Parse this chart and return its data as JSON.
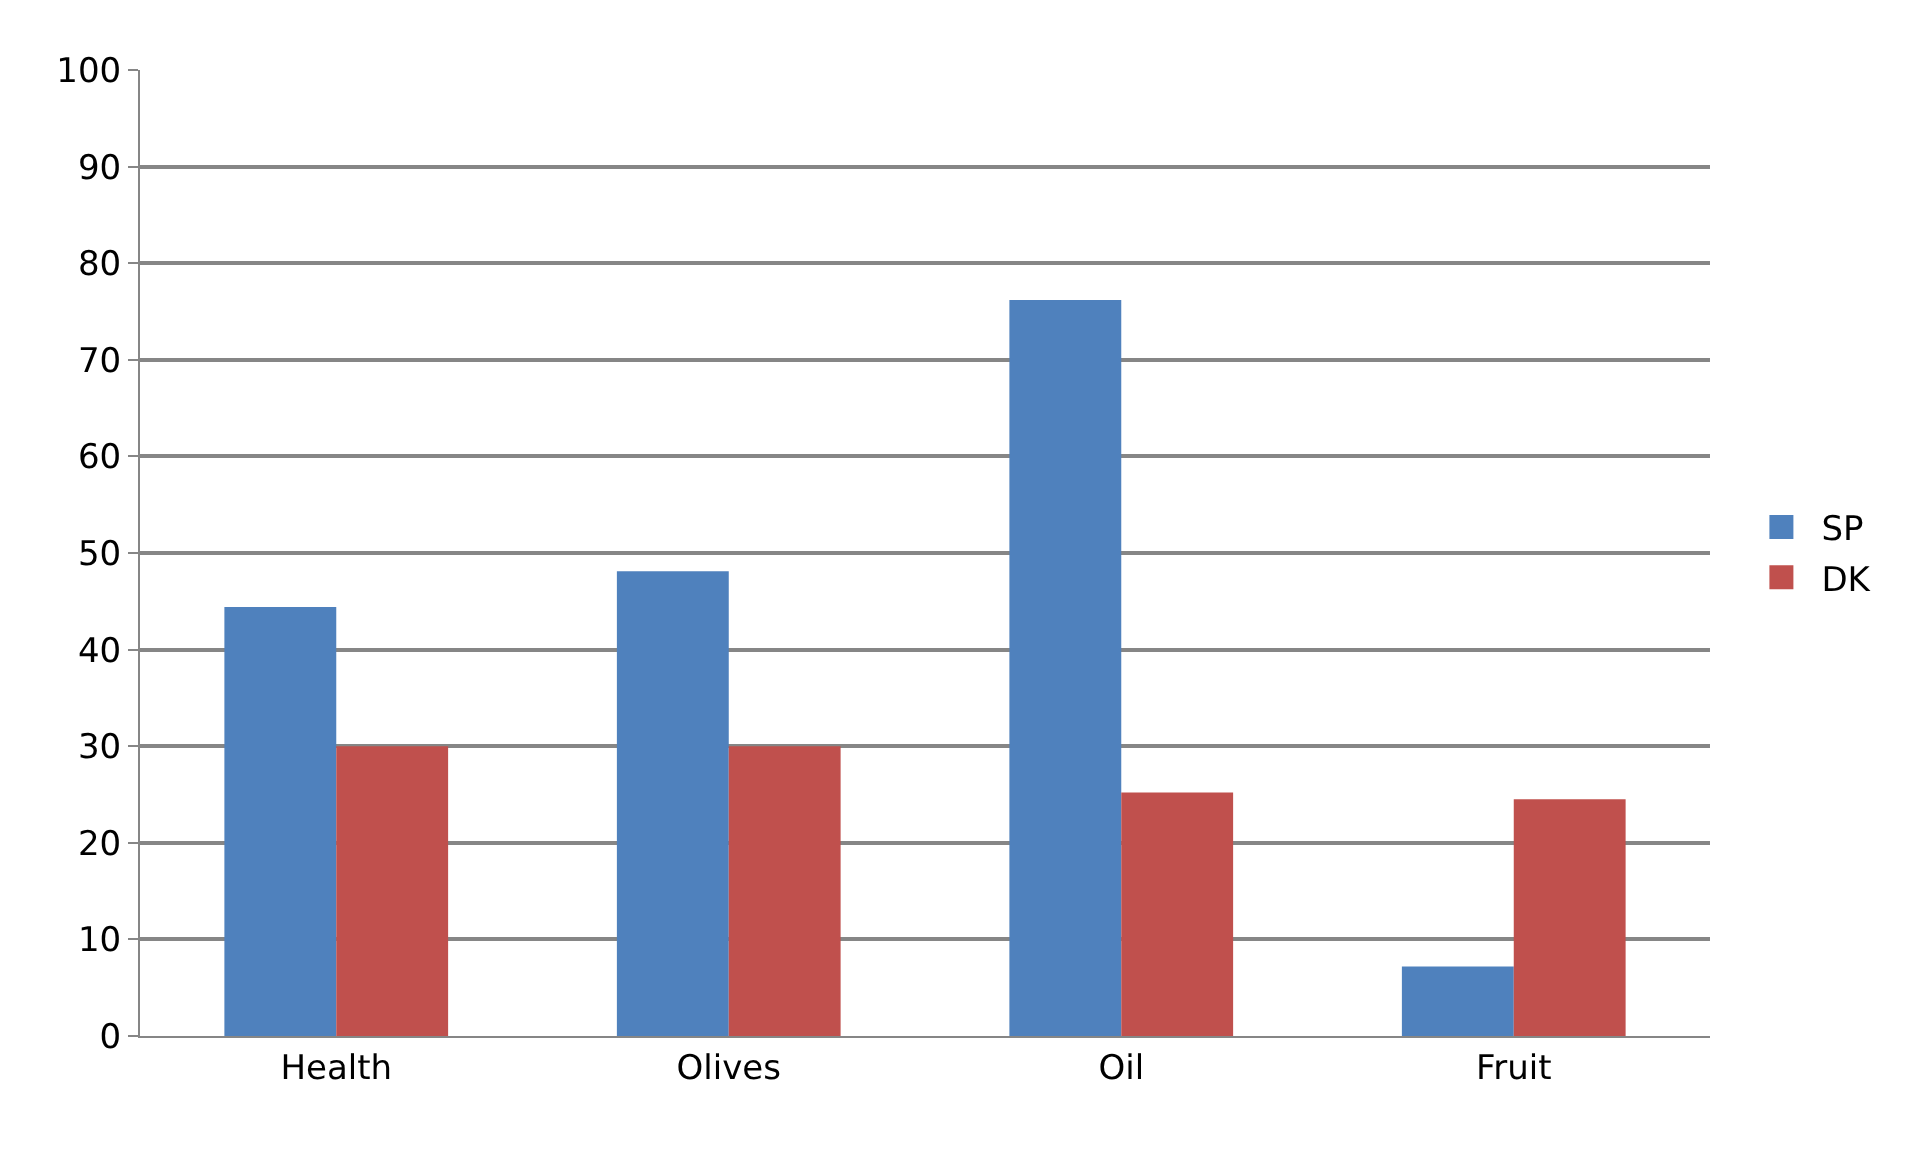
{
  "chart_data": {
    "type": "bar",
    "categories": [
      "Health",
      "Olives",
      "Oil",
      "Fruit"
    ],
    "series": [
      {
        "name": "SP",
        "color": "#4f81bd",
        "values": [
          44.4,
          48.1,
          76.2,
          7.2
        ]
      },
      {
        "name": "DK",
        "color": "#c0504d",
        "values": [
          30,
          30,
          25.2,
          24.5
        ]
      }
    ],
    "ylim": [
      0,
      100
    ],
    "yticks": [
      0,
      10,
      20,
      30,
      40,
      50,
      60,
      70,
      80,
      90,
      100
    ],
    "grid": "y",
    "legend": "right"
  }
}
